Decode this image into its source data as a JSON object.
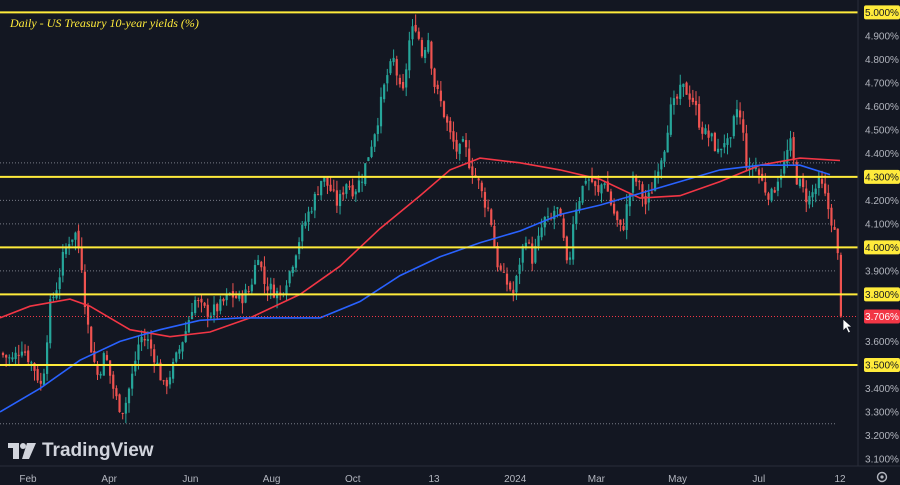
{
  "chart_data": {
    "type": "candlestick",
    "title": "Daily - US Treasury 10-year yields (%)",
    "x_labels": [
      "Feb",
      "Apr",
      "Jun",
      "Aug",
      "Oct",
      "13",
      "2024",
      "Mar",
      "May",
      "Jul",
      "12"
    ],
    "y_ticks": [
      "5.000%",
      "4.900%",
      "4.800%",
      "4.700%",
      "4.600%",
      "4.500%",
      "4.400%",
      "4.300%",
      "4.200%",
      "4.100%",
      "4.000%",
      "3.900%",
      "3.800%",
      "3.700%",
      "3.600%",
      "3.500%",
      "3.400%",
      "3.300%",
      "3.200%",
      "3.100%"
    ],
    "ylim": [
      3.07,
      5.04
    ],
    "last_price": 3.706,
    "last_price_label": "3.706%",
    "horizontal_levels": [
      {
        "value": 5.0,
        "label": "5.000%"
      },
      {
        "value": 4.3,
        "label": "4.300%"
      },
      {
        "value": 4.0,
        "label": "4.000%"
      },
      {
        "value": 3.8,
        "label": "3.800%"
      },
      {
        "value": 3.5,
        "label": "3.500%"
      }
    ],
    "dotted_levels": [
      4.36,
      4.2,
      4.1,
      3.9,
      3.25
    ],
    "close_path": [
      [
        0,
        3.55
      ],
      [
        12,
        3.52
      ],
      [
        22,
        3.58
      ],
      [
        35,
        3.48
      ],
      [
        42,
        3.4
      ],
      [
        50,
        3.75
      ],
      [
        58,
        3.85
      ],
      [
        64,
        3.98
      ],
      [
        70,
        4.04
      ],
      [
        76,
        4.06
      ],
      [
        82,
        3.92
      ],
      [
        86,
        3.72
      ],
      [
        92,
        3.55
      ],
      [
        98,
        3.45
      ],
      [
        105,
        3.55
      ],
      [
        112,
        3.42
      ],
      [
        118,
        3.33
      ],
      [
        124,
        3.31
      ],
      [
        132,
        3.45
      ],
      [
        140,
        3.62
      ],
      [
        148,
        3.6
      ],
      [
        156,
        3.52
      ],
      [
        164,
        3.4
      ],
      [
        172,
        3.48
      ],
      [
        178,
        3.55
      ],
      [
        186,
        3.65
      ],
      [
        194,
        3.78
      ],
      [
        202,
        3.74
      ],
      [
        210,
        3.72
      ],
      [
        220,
        3.75
      ],
      [
        230,
        3.8
      ],
      [
        240,
        3.78
      ],
      [
        250,
        3.82
      ],
      [
        258,
        3.98
      ],
      [
        264,
        3.85
      ],
      [
        272,
        3.82
      ],
      [
        280,
        3.8
      ],
      [
        290,
        3.9
      ],
      [
        298,
        4.02
      ],
      [
        306,
        4.12
      ],
      [
        314,
        4.2
      ],
      [
        322,
        4.3
      ],
      [
        330,
        4.25
      ],
      [
        338,
        4.18
      ],
      [
        346,
        4.28
      ],
      [
        354,
        4.24
      ],
      [
        362,
        4.3
      ],
      [
        370,
        4.42
      ],
      [
        378,
        4.55
      ],
      [
        386,
        4.72
      ],
      [
        394,
        4.8
      ],
      [
        402,
        4.62
      ],
      [
        410,
        4.9
      ],
      [
        416,
        4.95
      ],
      [
        422,
        4.82
      ],
      [
        428,
        4.9
      ],
      [
        434,
        4.7
      ],
      [
        442,
        4.6
      ],
      [
        450,
        4.48
      ],
      [
        458,
        4.4
      ],
      [
        464,
        4.44
      ],
      [
        470,
        4.35
      ],
      [
        478,
        4.28
      ],
      [
        484,
        4.2
      ],
      [
        490,
        4.15
      ],
      [
        496,
        3.95
      ],
      [
        502,
        3.88
      ],
      [
        508,
        3.84
      ],
      [
        514,
        3.8
      ],
      [
        520,
        3.95
      ],
      [
        526,
        4.05
      ],
      [
        532,
        3.95
      ],
      [
        538,
        4.02
      ],
      [
        544,
        4.12
      ],
      [
        550,
        4.1
      ],
      [
        556,
        4.18
      ],
      [
        562,
        4.08
      ],
      [
        568,
        3.88
      ],
      [
        574,
        4.15
      ],
      [
        580,
        4.22
      ],
      [
        586,
        4.3
      ],
      [
        592,
        4.28
      ],
      [
        598,
        4.22
      ],
      [
        604,
        4.3
      ],
      [
        610,
        4.2
      ],
      [
        616,
        4.12
      ],
      [
        622,
        4.06
      ],
      [
        628,
        4.2
      ],
      [
        634,
        4.3
      ],
      [
        640,
        4.25
      ],
      [
        646,
        4.18
      ],
      [
        652,
        4.25
      ],
      [
        658,
        4.35
      ],
      [
        664,
        4.42
      ],
      [
        670,
        4.58
      ],
      [
        676,
        4.62
      ],
      [
        682,
        4.68
      ],
      [
        688,
        4.66
      ],
      [
        694,
        4.62
      ],
      [
        700,
        4.52
      ],
      [
        706,
        4.48
      ],
      [
        712,
        4.46
      ],
      [
        718,
        4.4
      ],
      [
        724,
        4.46
      ],
      [
        730,
        4.42
      ],
      [
        736,
        4.6
      ],
      [
        742,
        4.52
      ],
      [
        748,
        4.3
      ],
      [
        754,
        4.36
      ],
      [
        760,
        4.3
      ],
      [
        766,
        4.24
      ],
      [
        772,
        4.22
      ],
      [
        778,
        4.3
      ],
      [
        784,
        4.35
      ],
      [
        790,
        4.45
      ],
      [
        796,
        4.3
      ],
      [
        802,
        4.25
      ],
      [
        808,
        4.2
      ],
      [
        814,
        4.24
      ],
      [
        820,
        4.28
      ],
      [
        826,
        4.2
      ],
      [
        830,
        4.14
      ],
      [
        834,
        4.08
      ],
      [
        838,
        3.95
      ],
      [
        841,
        3.706
      ]
    ],
    "ma_red": [
      [
        0,
        3.7
      ],
      [
        30,
        3.75
      ],
      [
        70,
        3.78
      ],
      [
        90,
        3.75
      ],
      [
        130,
        3.65
      ],
      [
        170,
        3.62
      ],
      [
        210,
        3.64
      ],
      [
        250,
        3.7
      ],
      [
        300,
        3.8
      ],
      [
        340,
        3.92
      ],
      [
        380,
        4.08
      ],
      [
        420,
        4.22
      ],
      [
        450,
        4.33
      ],
      [
        480,
        4.38
      ],
      [
        520,
        4.36
      ],
      [
        560,
        4.33
      ],
      [
        600,
        4.29
      ],
      [
        640,
        4.21
      ],
      [
        680,
        4.22
      ],
      [
        720,
        4.28
      ],
      [
        760,
        4.35
      ],
      [
        800,
        4.38
      ],
      [
        840,
        4.37
      ]
    ],
    "ma_blue": [
      [
        0,
        3.3
      ],
      [
        40,
        3.4
      ],
      [
        80,
        3.52
      ],
      [
        120,
        3.6
      ],
      [
        160,
        3.65
      ],
      [
        200,
        3.69
      ],
      [
        240,
        3.7
      ],
      [
        280,
        3.7
      ],
      [
        320,
        3.7
      ],
      [
        360,
        3.77
      ],
      [
        400,
        3.88
      ],
      [
        440,
        3.96
      ],
      [
        480,
        4.02
      ],
      [
        520,
        4.07
      ],
      [
        560,
        4.14
      ],
      [
        600,
        4.18
      ],
      [
        640,
        4.23
      ],
      [
        680,
        4.28
      ],
      [
        720,
        4.33
      ],
      [
        760,
        4.35
      ],
      [
        800,
        4.35
      ],
      [
        830,
        4.31
      ]
    ],
    "colors": {
      "background": "#131722",
      "up": "#26a69a",
      "down": "#ef5350",
      "level_line": "#ffeb3b",
      "ma_red": "#f23645",
      "ma_blue": "#2962ff",
      "axis_text": "#b2b5be",
      "title_text": "#ffeb3b",
      "last_price_bg": "#f23645"
    }
  },
  "watermark": "TradingView",
  "icons": [
    "tradingview-logo-icon",
    "cursor-arrow-icon",
    "settings-gear-icon"
  ]
}
